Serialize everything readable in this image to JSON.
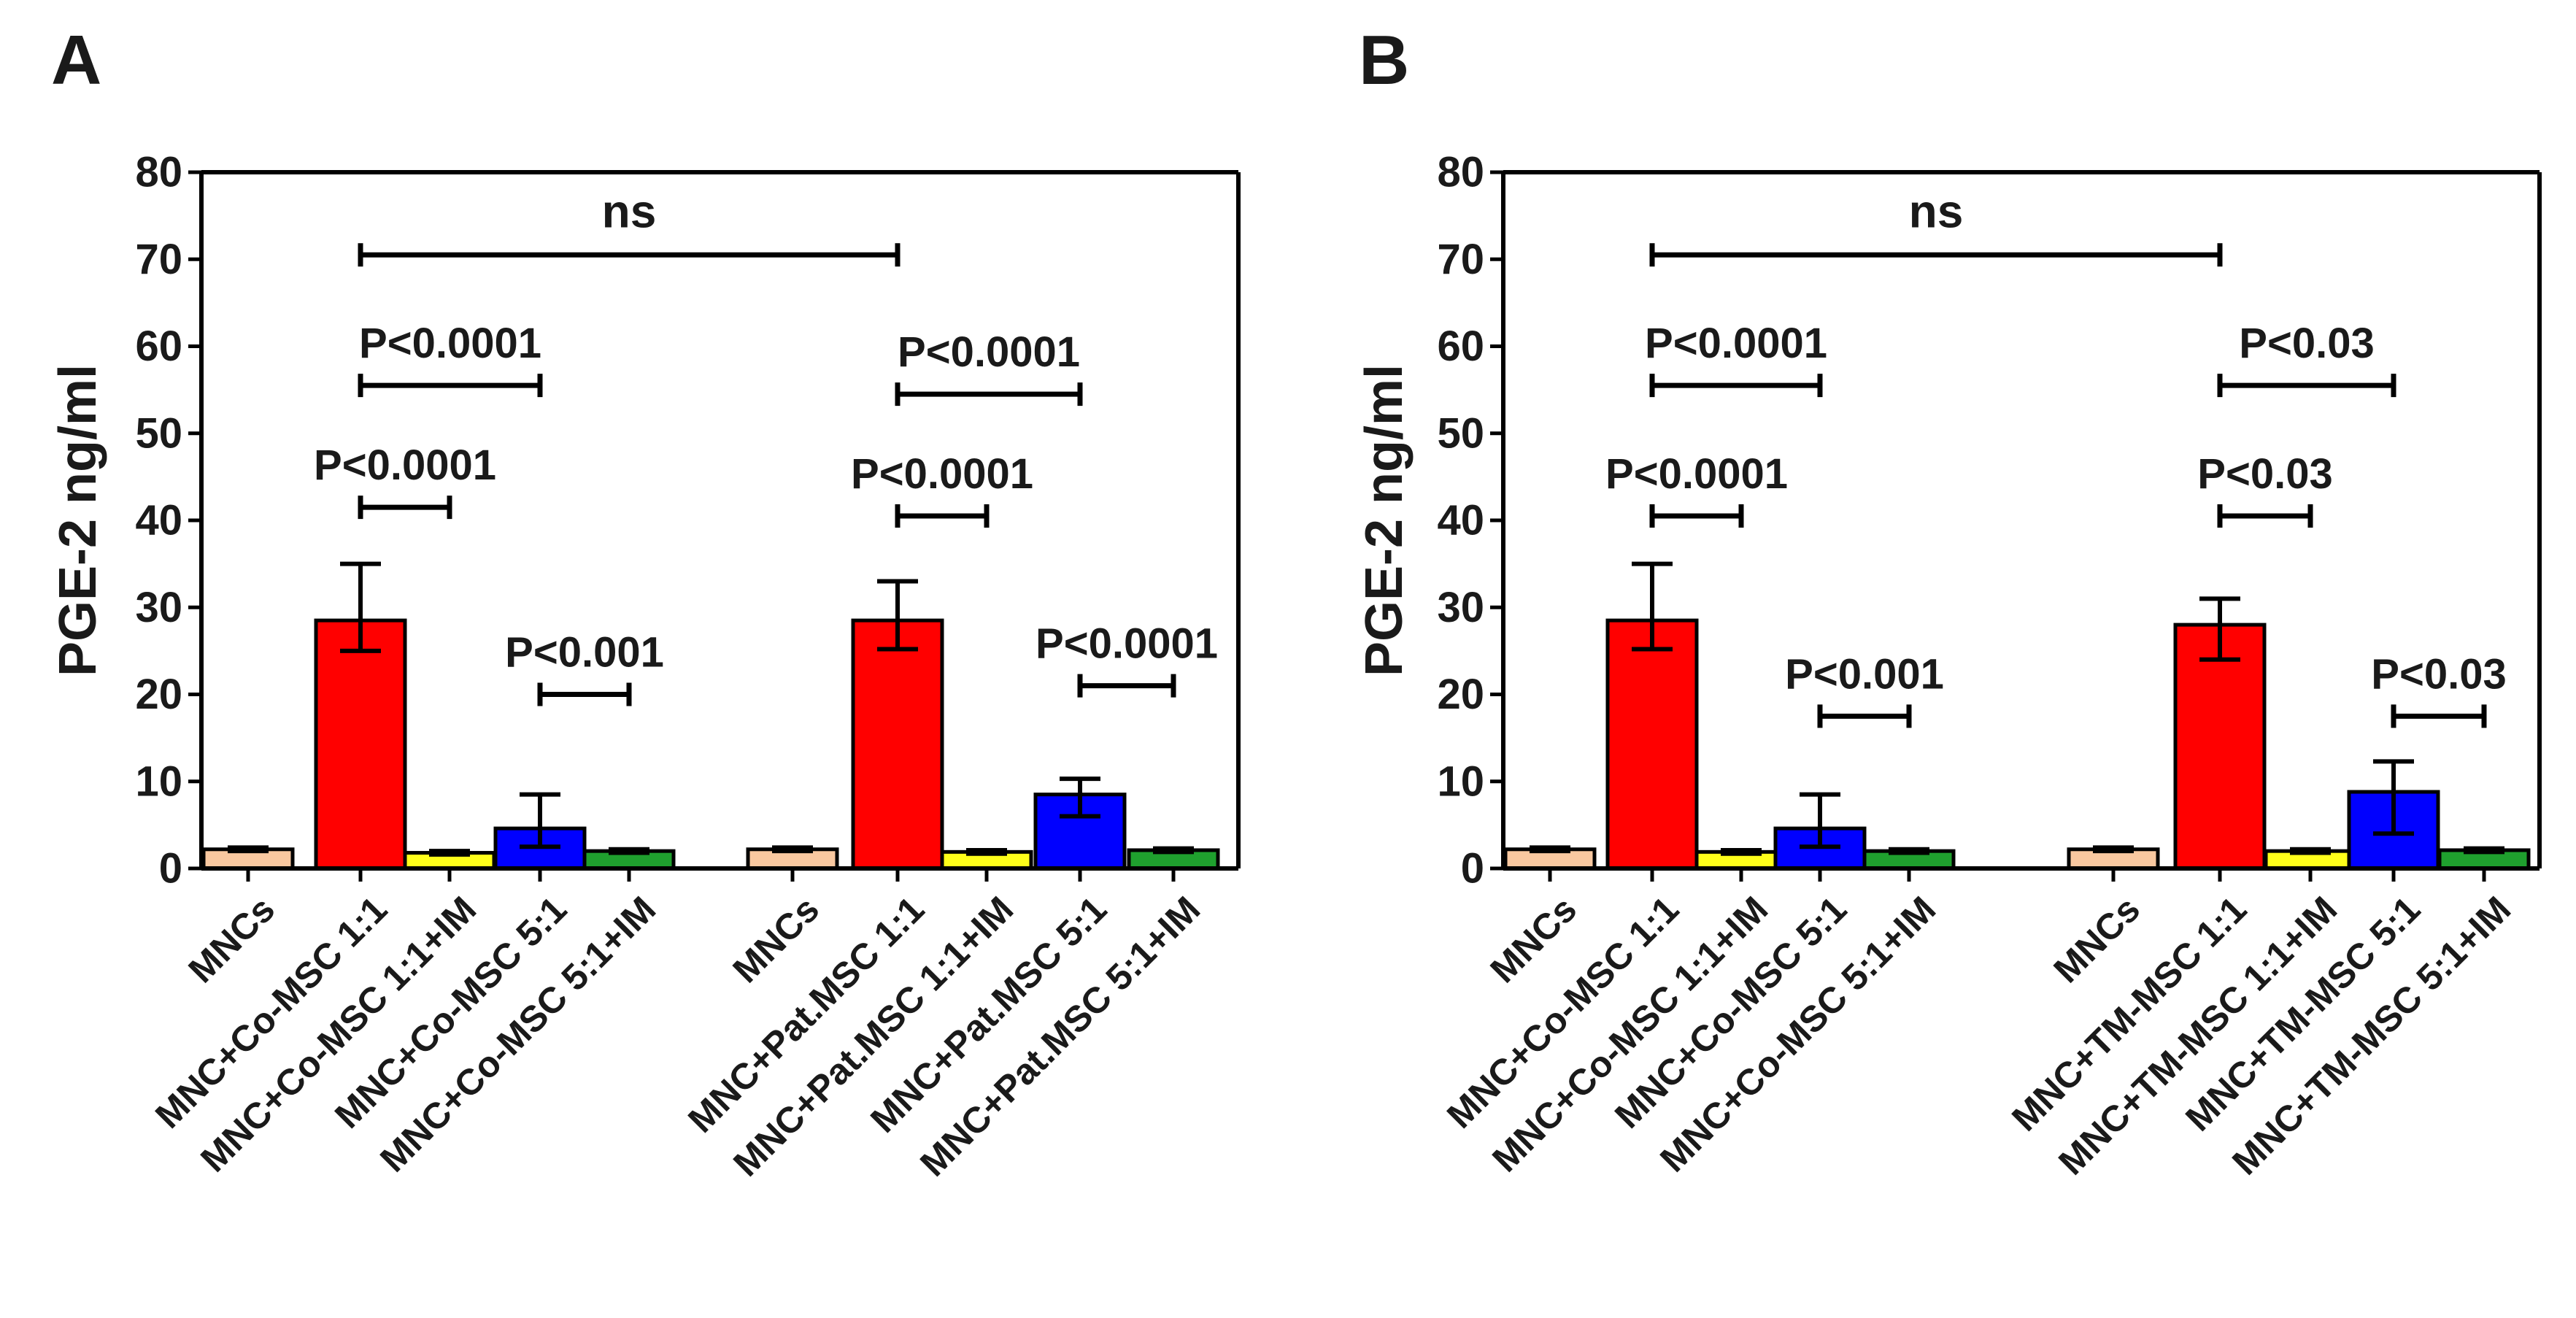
{
  "chart_data": [
    {
      "type": "bar",
      "panel_label": "A",
      "ylabel": "PGE-2 ng/ml",
      "ylim": [
        0,
        80
      ],
      "yticks": [
        0,
        10,
        20,
        30,
        40,
        50,
        60,
        70,
        80
      ],
      "categories": [
        "MNCs",
        "MNC+Co-MSC 1:1",
        "MNC+Co-MSC 1:1+IM",
        "MNC+Co-MSC 5:1",
        "MNC+Co-MSC 5:1+IM",
        "MNCs",
        "MNC+Pat.MSC 1:1",
        "MNC+Pat.MSC 1:1+IM",
        "MNC+Pat.MSC 5:1",
        "MNC+Pat.MSC 5:1+IM"
      ],
      "groups": [
        [
          0,
          1,
          2,
          3,
          4
        ],
        [
          5,
          6,
          7,
          8,
          9
        ]
      ],
      "values": [
        2.2,
        28.5,
        1.8,
        4.6,
        2.0,
        2.2,
        28.5,
        1.9,
        8.5,
        2.1
      ],
      "error_low": [
        2.0,
        25.0,
        1.6,
        2.5,
        1.8,
        2.0,
        25.2,
        1.7,
        6.0,
        1.9
      ],
      "error_high": [
        2.4,
        35.0,
        2.0,
        8.5,
        2.2,
        2.4,
        33.0,
        2.1,
        10.3,
        2.3
      ],
      "bar_colors": [
        "#F9C8A0",
        "#FF0000",
        "#FFFF1A",
        "#0000FF",
        "#1FA02E",
        "#F9C8A0",
        "#FF0000",
        "#FFFF1A",
        "#0000FF",
        "#1FA02E"
      ],
      "annotations": [
        {
          "text": "ns",
          "from": 1,
          "to": 6,
          "y": 70.5
        },
        {
          "text": "P<0.0001",
          "from": 1,
          "to": 3,
          "y": 55.5
        },
        {
          "text": "P<0.0001",
          "from": 1,
          "to": 2,
          "y": 41.5
        },
        {
          "text": "P<0.001",
          "from": 3,
          "to": 4,
          "y": 20
        },
        {
          "text": "P<0.0001",
          "from": 6,
          "to": 8,
          "y": 54.5
        },
        {
          "text": "P<0.0001",
          "from": 6,
          "to": 7,
          "y": 40.5
        },
        {
          "text": "P<0.0001",
          "from": 8,
          "to": 9,
          "y": 21
        }
      ]
    },
    {
      "type": "bar",
      "panel_label": "B",
      "ylabel": "PGE-2 ng/ml",
      "ylim": [
        0,
        80
      ],
      "yticks": [
        0,
        10,
        20,
        30,
        40,
        50,
        60,
        70,
        80
      ],
      "categories": [
        "MNCs",
        "MNC+Co-MSC 1:1",
        "MNC+Co-MSC 1:1+IM",
        "MNC+Co-MSC 5:1",
        "MNC+Co-MSC 5:1+IM",
        "MNCs",
        "MNC+TM-MSC 1:1",
        "MNC+TM-MSC 1:1+IM",
        "MNC+TM-MSC 5:1",
        "MNC+TM-MSC 5:1+IM"
      ],
      "groups": [
        [
          0,
          1,
          2,
          3,
          4
        ],
        [
          5,
          6,
          7,
          8,
          9
        ]
      ],
      "values": [
        2.2,
        28.5,
        1.9,
        4.6,
        2.0,
        2.2,
        28.0,
        2.0,
        8.8,
        2.1
      ],
      "error_low": [
        2.0,
        25.2,
        1.7,
        2.5,
        1.8,
        2.0,
        24.0,
        1.8,
        4.0,
        1.9
      ],
      "error_high": [
        2.4,
        35.0,
        2.1,
        8.5,
        2.2,
        2.4,
        31.0,
        2.2,
        12.3,
        2.3
      ],
      "bar_colors": [
        "#F9C8A0",
        "#FF0000",
        "#FFFF1A",
        "#0000FF",
        "#1FA02E",
        "#F9C8A0",
        "#FF0000",
        "#FFFF1A",
        "#0000FF",
        "#1FA02E"
      ],
      "annotations": [
        {
          "text": "ns",
          "from": 1,
          "to": 6,
          "y": 70.5
        },
        {
          "text": "P<0.0001",
          "from": 1,
          "to": 3,
          "y": 55.5
        },
        {
          "text": "P<0.0001",
          "from": 1,
          "to": 2,
          "y": 40.5
        },
        {
          "text": "P<0.001",
          "from": 3,
          "to": 4,
          "y": 17.5
        },
        {
          "text": "P<0.03",
          "from": 6,
          "to": 8,
          "y": 55.5
        },
        {
          "text": "P<0.03",
          "from": 6,
          "to": 7,
          "y": 40.5
        },
        {
          "text": "P<0.03",
          "from": 8,
          "to": 9,
          "y": 17.5
        }
      ]
    }
  ]
}
